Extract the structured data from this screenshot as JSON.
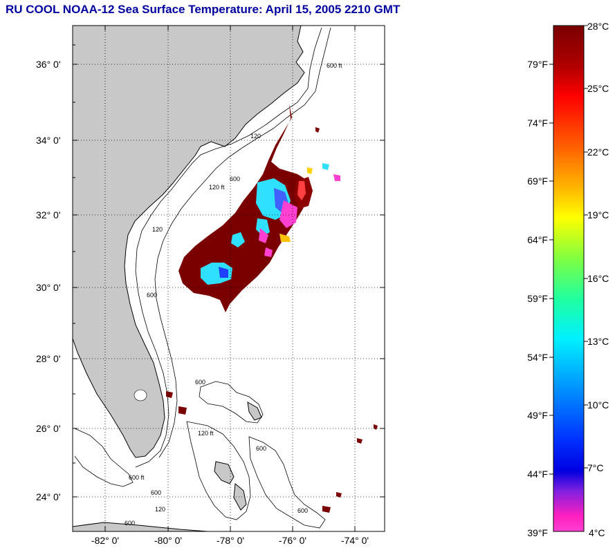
{
  "title": "RU COOL  NOAA-12  Sea Surface Temperature:  April 15, 2005 2210 GMT",
  "map": {
    "lat_labels": [
      "36° 0'",
      "34° 0'",
      "32° 0'",
      "30° 0'",
      "28° 0'",
      "26° 0'",
      "24° 0'"
    ],
    "lon_labels": [
      "-82° 0'",
      "-80° 0'",
      "-78° 0'",
      "-76° 0'",
      "-74° 0'"
    ],
    "land_color": "#c8c8c8",
    "water_color": "#ffffff",
    "grid": "dotted",
    "contour_labels": [
      "120",
      "600",
      "120 ft",
      "600 ft",
      "600",
      "120",
      "600",
      "120 ft",
      "600 ft",
      "600",
      "600",
      "120",
      "600",
      "600"
    ]
  },
  "colorbar": {
    "fahrenheit_labels": [
      "79°F",
      "74°F",
      "69°F",
      "64°F",
      "59°F",
      "54°F",
      "49°F",
      "44°F",
      "39°F"
    ],
    "celsius_labels": [
      "28°C",
      "25°C",
      "22°C",
      "19°C",
      "16°C",
      "13°C",
      "10°C",
      "7°C",
      "4°C"
    ],
    "colors_top_to_bottom": [
      "#7a0000",
      "#d40000",
      "#ff2000",
      "#ff8000",
      "#ffe000",
      "#c0ff30",
      "#40ff80",
      "#00ffe0",
      "#00a0ff",
      "#0040ff",
      "#0000ff",
      "#8020e0",
      "#ff20c0",
      "#ff40d0"
    ]
  }
}
